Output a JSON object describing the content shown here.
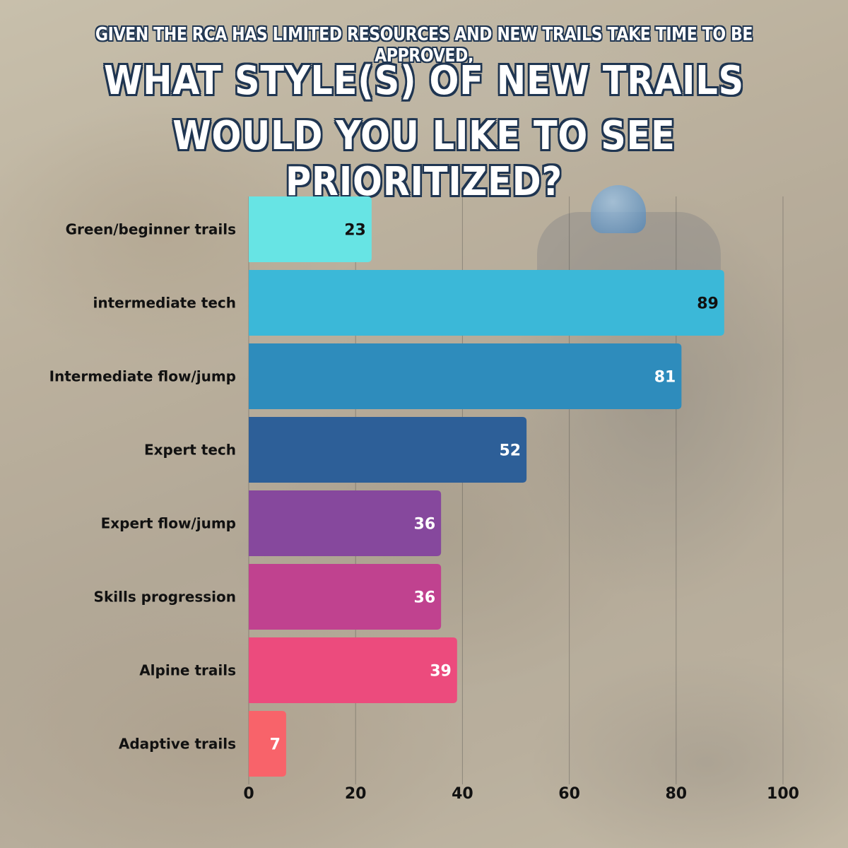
{
  "title": {
    "line1": "Given the RCA has limited resources and new trails take time to be approved,",
    "line2": "What style(s) of new trails",
    "line3": "would you like to see prioritized?"
  },
  "chart_data": {
    "type": "bar",
    "orientation": "horizontal",
    "categories": [
      "Green/beginner trails",
      "intermediate tech",
      "Intermediate flow/jump",
      "Expert tech",
      "Expert flow/jump",
      "Skills progression",
      "Alpine trails",
      "Adaptive trails"
    ],
    "values": [
      23,
      89,
      81,
      52,
      36,
      36,
      39,
      7
    ],
    "colors": [
      "#67e4e4",
      "#3bb8d8",
      "#2e8cbc",
      "#2d5f98",
      "#86489d",
      "#c0428f",
      "#ec4b7d",
      "#f8636a"
    ],
    "value_label_colors": [
      "#111111",
      "#111111",
      "#ffffff",
      "#ffffff",
      "#ffffff",
      "#ffffff",
      "#ffffff",
      "#ffffff"
    ],
    "xlim": [
      0,
      100
    ],
    "xticks": [
      0,
      20,
      40,
      60,
      80,
      100
    ],
    "grid": true
  }
}
